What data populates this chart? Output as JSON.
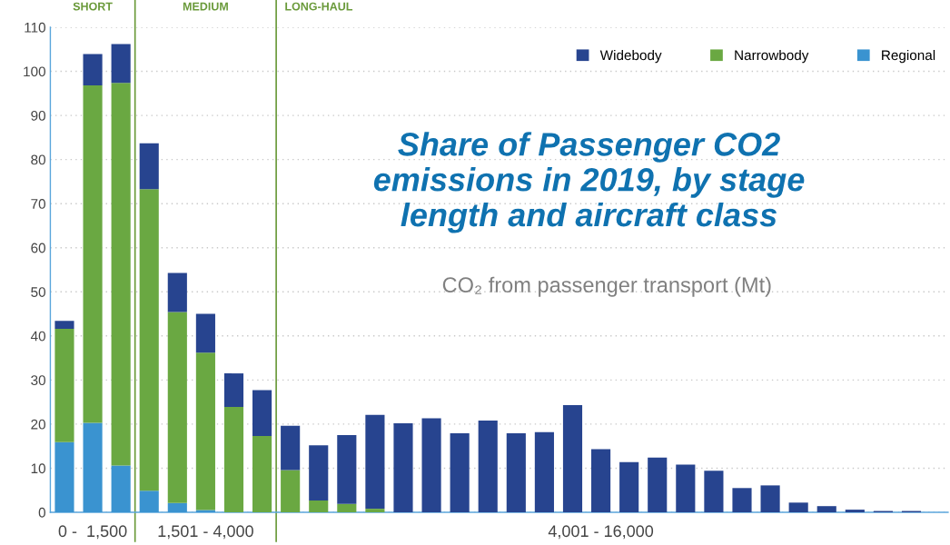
{
  "chart_data": {
    "type": "bar",
    "stacked": true,
    "title": "Share of Passenger CO2\nemissions in 2019, by stage\nlength and aircraft class",
    "subtitle": "CO₂ from passenger transport (Mt)",
    "categories": [
      null,
      "0 -  1,500",
      null,
      null,
      null,
      "1,501 - 4,000",
      null,
      null,
      null,
      null,
      null,
      null,
      null,
      null,
      null,
      null,
      null,
      null,
      null,
      "4,001 - 16,000",
      null,
      null,
      null,
      null,
      null,
      null,
      null,
      null,
      null,
      null,
      null
    ],
    "series": [
      {
        "name": "Regional",
        "color": "#3a93d0",
        "values": [
          15.9,
          20.3,
          10.6,
          4.9,
          2.1,
          0.5,
          0,
          0,
          0,
          0,
          0,
          0,
          0,
          0,
          0,
          0,
          0,
          0,
          0,
          0,
          0,
          0,
          0,
          0,
          0,
          0,
          0,
          0,
          0,
          0,
          0
        ]
      },
      {
        "name": "Narrowbody",
        "color": "#6aa842",
        "values": [
          25.7,
          76.5,
          86.8,
          68.4,
          43.3,
          35.7,
          23.9,
          17.3,
          9.6,
          2.7,
          1.9,
          0.8,
          0,
          0,
          0,
          0,
          0,
          0,
          0,
          0,
          0,
          0,
          0,
          0,
          0,
          0,
          0,
          0,
          0,
          0,
          0
        ]
      },
      {
        "name": "Widebody",
        "color": "#27448f",
        "values": [
          1.8,
          7.1,
          8.8,
          10.4,
          8.9,
          8.8,
          7.6,
          10.4,
          10.0,
          12.5,
          15.6,
          21.3,
          20.2,
          21.3,
          17.9,
          20.8,
          17.9,
          18.2,
          24.3,
          14.3,
          11.4,
          12.4,
          10.8,
          9.4,
          5.5,
          6.1,
          2.2,
          1.4,
          0.6,
          0.3,
          0.3
        ]
      }
    ],
    "ylim": [
      0,
      110
    ],
    "yticks": [
      0,
      10,
      20,
      30,
      40,
      50,
      60,
      70,
      80,
      90,
      100,
      110
    ],
    "grid": "y",
    "legend": "top right",
    "annotations": [
      "SHORT",
      "MEDIUM",
      "LONG-HAUL"
    ]
  }
}
